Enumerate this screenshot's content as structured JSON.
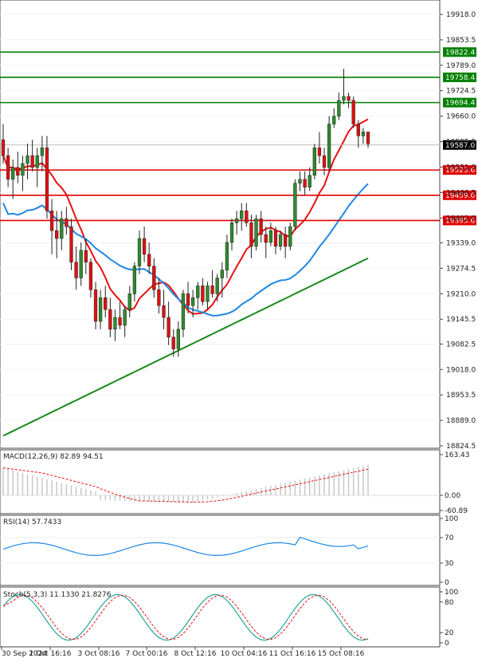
{
  "chart_data": [
    {
      "type": "candlestick",
      "pane": "price",
      "ylim": [
        18824.5,
        19918.0
      ],
      "y_ticks": [
        "19918.0",
        "19853.5",
        "19789.0",
        "19724.5",
        "19660.0",
        "19595.5",
        "19531.0",
        "19466.5",
        "19402.0",
        "19339.0",
        "19274.5",
        "19210.0",
        "19145.5",
        "19082.5",
        "19018.0",
        "18953.5",
        "18889.0",
        "18824.5"
      ],
      "x_ticks": [
        "30 Sep 2024",
        "1 Oct 16:16",
        "3 Oct 08:16",
        "7 Oct 00:16",
        "8 Oct 12:16",
        "10 Oct 04:16",
        "11 Oct 16:16",
        "15 Oct 08:16"
      ],
      "current_price": "19587.0",
      "levels": [
        {
          "label": "19822.4",
          "value": 19822.4,
          "color": "#008000"
        },
        {
          "label": "19758.4",
          "value": 19758.4,
          "color": "#008000"
        },
        {
          "label": "19694.4",
          "value": 19694.4,
          "color": "#008000"
        },
        {
          "label": "19523.6",
          "value": 19523.6,
          "color": "#e00000"
        },
        {
          "label": "19459.6",
          "value": 19459.6,
          "color": "#e00000"
        },
        {
          "label": "19395.6",
          "value": 19395.6,
          "color": "#e00000"
        }
      ],
      "candles": [
        [
          19600,
          19640,
          19540,
          19560
        ],
        [
          19560,
          19580,
          19480,
          19500
        ],
        [
          19500,
          19550,
          19450,
          19530
        ],
        [
          19530,
          19570,
          19490,
          19510
        ],
        [
          19510,
          19560,
          19470,
          19540
        ],
        [
          19540,
          19590,
          19500,
          19560
        ],
        [
          19560,
          19600,
          19520,
          19530
        ],
        [
          19530,
          19580,
          19480,
          19560
        ],
        [
          19560,
          19610,
          19520,
          19580
        ],
        [
          19580,
          19610,
          19400,
          19420
        ],
        [
          19420,
          19450,
          19310,
          19370
        ],
        [
          19370,
          19420,
          19300,
          19350
        ],
        [
          19350,
          19420,
          19320,
          19400
        ],
        [
          19400,
          19430,
          19360,
          19380
        ],
        [
          19380,
          19400,
          19270,
          19290
        ],
        [
          19290,
          19330,
          19220,
          19250
        ],
        [
          19250,
          19340,
          19230,
          19320
        ],
        [
          19320,
          19350,
          19260,
          19290
        ],
        [
          19290,
          19300,
          19200,
          19220
        ],
        [
          19220,
          19240,
          19120,
          19140
        ],
        [
          19140,
          19220,
          19120,
          19200
        ],
        [
          19200,
          19230,
          19150,
          19170
        ],
        [
          19170,
          19200,
          19100,
          19120
        ],
        [
          19120,
          19170,
          19090,
          19150
        ],
        [
          19150,
          19190,
          19120,
          19130
        ],
        [
          19130,
          19180,
          19100,
          19170
        ],
        [
          19170,
          19230,
          19150,
          19210
        ],
        [
          19210,
          19290,
          19190,
          19280
        ],
        [
          19280,
          19370,
          19260,
          19350
        ],
        [
          19350,
          19380,
          19290,
          19310
        ],
        [
          19310,
          19340,
          19260,
          19280
        ],
        [
          19280,
          19300,
          19200,
          19220
        ],
        [
          19220,
          19250,
          19160,
          19180
        ],
        [
          19180,
          19220,
          19120,
          19150
        ],
        [
          19150,
          19190,
          19080,
          19100
        ],
        [
          19100,
          19120,
          19050,
          19070
        ],
        [
          19070,
          19140,
          19050,
          19120
        ],
        [
          19120,
          19220,
          19100,
          19210
        ],
        [
          19210,
          19240,
          19160,
          19180
        ],
        [
          19180,
          19220,
          19150,
          19200
        ],
        [
          19200,
          19240,
          19170,
          19230
        ],
        [
          19230,
          19250,
          19180,
          19190
        ],
        [
          19190,
          19240,
          19170,
          19230
        ],
        [
          19230,
          19270,
          19200,
          19210
        ],
        [
          19210,
          19260,
          19190,
          19250
        ],
        [
          19250,
          19290,
          19200,
          19270
        ],
        [
          19270,
          19360,
          19250,
          19340
        ],
        [
          19340,
          19400,
          19320,
          19390
        ],
        [
          19390,
          19420,
          19360,
          19400
        ],
        [
          19400,
          19440,
          19370,
          19420
        ],
        [
          19420,
          19440,
          19380,
          19390
        ],
        [
          19390,
          19410,
          19300,
          19330
        ],
        [
          19330,
          19410,
          19320,
          19400
        ],
        [
          19400,
          19420,
          19340,
          19360
        ],
        [
          19360,
          19380,
          19300,
          19340
        ],
        [
          19340,
          19390,
          19330,
          19370
        ],
        [
          19370,
          19380,
          19310,
          19330
        ],
        [
          19330,
          19370,
          19320,
          19360
        ],
        [
          19360,
          19380,
          19300,
          19330
        ],
        [
          19330,
          19390,
          19320,
          19380
        ],
        [
          19380,
          19500,
          19370,
          19490
        ],
        [
          19490,
          19520,
          19470,
          19500
        ],
        [
          19500,
          19520,
          19460,
          19480
        ],
        [
          19480,
          19530,
          19470,
          19510
        ],
        [
          19510,
          19590,
          19500,
          19580
        ],
        [
          19580,
          19620,
          19540,
          19560
        ],
        [
          19560,
          19580,
          19510,
          19530
        ],
        [
          19530,
          19660,
          19520,
          19640
        ],
        [
          19640,
          19680,
          19630,
          19660
        ],
        [
          19660,
          19720,
          19650,
          19700
        ],
        [
          19700,
          19780,
          19690,
          19710
        ],
        [
          19710,
          19720,
          19680,
          19700
        ],
        [
          19700,
          19710,
          19630,
          19640
        ],
        [
          19640,
          19650,
          19580,
          19610
        ],
        [
          19610,
          19630,
          19590,
          19620
        ],
        [
          19620,
          19620,
          19580,
          19590
        ]
      ]
    },
    {
      "type": "line",
      "pane": "macd",
      "title": "MACD(12,26,9) 82.89 94.51",
      "y_ticks": [
        "163.43",
        "0.00",
        "-60.89"
      ],
      "ylim": [
        -60.89,
        163.43
      ]
    },
    {
      "type": "line",
      "pane": "rsi",
      "title": "RSI(14) 57.7433",
      "y_ticks": [
        "100",
        "70",
        "30",
        "0"
      ],
      "ylim": [
        0,
        100
      ]
    },
    {
      "type": "line",
      "pane": "stoch",
      "title": "Stoch(5,3,3) 11.1330 21.8276",
      "y_ticks": [
        "100",
        "80",
        "20",
        "0"
      ],
      "ylim": [
        0,
        100
      ]
    }
  ]
}
